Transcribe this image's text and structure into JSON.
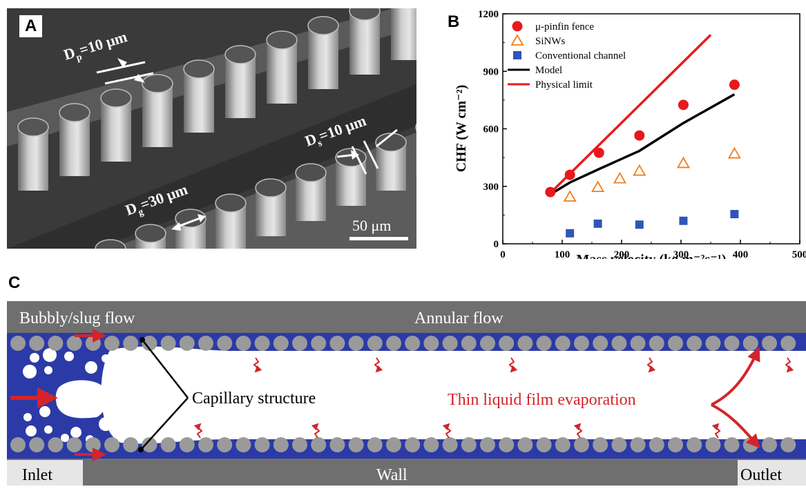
{
  "panel_a": {
    "letter": "A",
    "labels": {
      "dp": "D",
      "dp_sub": "p",
      "dp_val": "=10 μm",
      "ds": "D",
      "ds_sub": "s",
      "ds_val": "=10 μm",
      "dg": "D",
      "dg_sub": "g",
      "dg_val": "=30 μm"
    },
    "scale_bar": "50 μm"
  },
  "panel_b": {
    "letter": "B"
  },
  "chart_data": {
    "type": "scatter",
    "xlabel": "Mass velocity (kg m⁻²s⁻¹)",
    "ylabel": "CHF (W cm⁻²)",
    "xlim": [
      0,
      500
    ],
    "ylim": [
      0,
      1200
    ],
    "xticks": [
      "0",
      "100",
      "200",
      "300",
      "400",
      "500"
    ],
    "yticks": [
      "0",
      "300",
      "600",
      "900",
      "1200"
    ],
    "legend_position": "top-left",
    "series": [
      {
        "name": "μ-pinfin fence",
        "marker": "filled-circle",
        "color": "#e8191c",
        "x": [
          80,
          113,
          162,
          230,
          304,
          390
        ],
        "y": [
          270,
          360,
          475,
          565,
          725,
          830
        ]
      },
      {
        "name": "SiNWs",
        "marker": "open-triangle",
        "color": "#f07d1a",
        "x": [
          113,
          160,
          197,
          230,
          304,
          390
        ],
        "y": [
          245,
          295,
          340,
          380,
          420,
          470
        ]
      },
      {
        "name": "Conventional channel",
        "marker": "filled-square",
        "color": "#2f55b8",
        "x": [
          113,
          160,
          230,
          304,
          390
        ],
        "y": [
          55,
          105,
          100,
          120,
          155
        ]
      },
      {
        "name": "Model",
        "marker": "line",
        "color": "#000000",
        "x": [
          80,
          113,
          162,
          230,
          304,
          390
        ],
        "y": [
          258,
          320,
          390,
          485,
          630,
          780
        ]
      },
      {
        "name": "Physical limit",
        "marker": "line",
        "color": "#e8191c",
        "x": [
          80,
          350
        ],
        "y": [
          265,
          1090
        ]
      }
    ]
  },
  "panel_c": {
    "letter": "C",
    "top_left": "Bubbly/slug flow",
    "top_center": "Annular flow",
    "capillary": "Capillary structure",
    "evaporation": "Thin liquid film evaporation",
    "inlet": "Inlet",
    "wall": "Wall",
    "outlet": "Outlet"
  }
}
